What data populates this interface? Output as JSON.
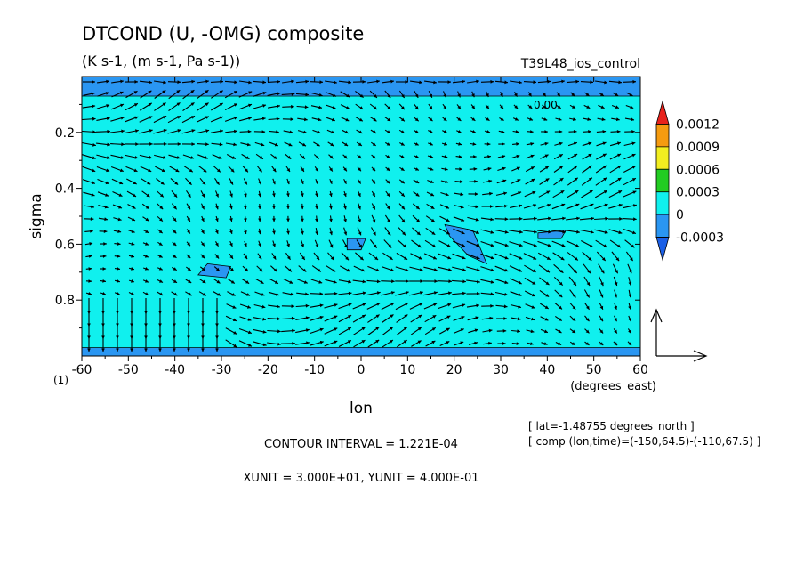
{
  "chart_data": {
    "type": "heatmap",
    "title": "DTCOND (U, -OMG) composite",
    "subtitle": "(K s-1, (m s-1, Pa s-1))",
    "experiment": "T39L48_ios_control",
    "xlabel": "lon",
    "xunit_label": "(degrees_east)",
    "ylabel": "sigma",
    "y_corner_label": "(1)",
    "xlim": [
      -60,
      60
    ],
    "ylim": [
      1.0,
      0.0
    ],
    "x_ticks": [
      "-60",
      "-50",
      "-40",
      "-30",
      "-20",
      "-10",
      "0",
      "10",
      "20",
      "30",
      "40",
      "50",
      "60"
    ],
    "y_ticks": [
      "0.2",
      "0.4",
      "0.6",
      "0.8"
    ],
    "colorbar": {
      "labels": [
        "0.0012",
        "0.0009",
        "0.0006",
        "0.0003",
        "0",
        "-0.0003"
      ],
      "colors": [
        "#e8231c",
        "#f59b10",
        "#f2ee20",
        "#22cc22",
        "#10f0ee",
        "#2a96f2",
        "#1b5fe6"
      ]
    },
    "contour_label": "0.00",
    "contour_interval_text": "CONTOUR INTERVAL = 1.221E-04",
    "units_text": "XUNIT = 3.000E+01, YUNIT = 4.000E-01",
    "info_lines": [
      "[ lat=-1.48755 degrees_north ]",
      "[ comp (lon,time)=(-150,64.5)-(-110,67.5) ]"
    ],
    "background_color": "#10f0ee",
    "negative_patch_color": "#2a96f2",
    "negative_patches": [
      {
        "lon": [
          -33,
          -28,
          -29,
          -35
        ],
        "sigma": [
          0.67,
          0.68,
          0.72,
          0.71
        ]
      },
      {
        "lon": [
          -3,
          1,
          0,
          -3
        ],
        "sigma": [
          0.58,
          0.58,
          0.62,
          0.62
        ]
      },
      {
        "lon": [
          18,
          24,
          27,
          23,
          19
        ],
        "sigma": [
          0.53,
          0.55,
          0.67,
          0.64,
          0.57
        ]
      },
      {
        "lon": [
          38,
          44,
          43,
          38
        ],
        "sigma": [
          0.56,
          0.55,
          0.58,
          0.58
        ]
      },
      {
        "lon": [
          -60,
          60,
          60,
          -60
        ],
        "sigma": [
          0.0,
          0.0,
          0.07,
          0.07
        ]
      },
      {
        "lon": [
          -60,
          60,
          60,
          -60
        ],
        "sigma": [
          0.97,
          0.97,
          1.0,
          1.0
        ]
      }
    ]
  }
}
